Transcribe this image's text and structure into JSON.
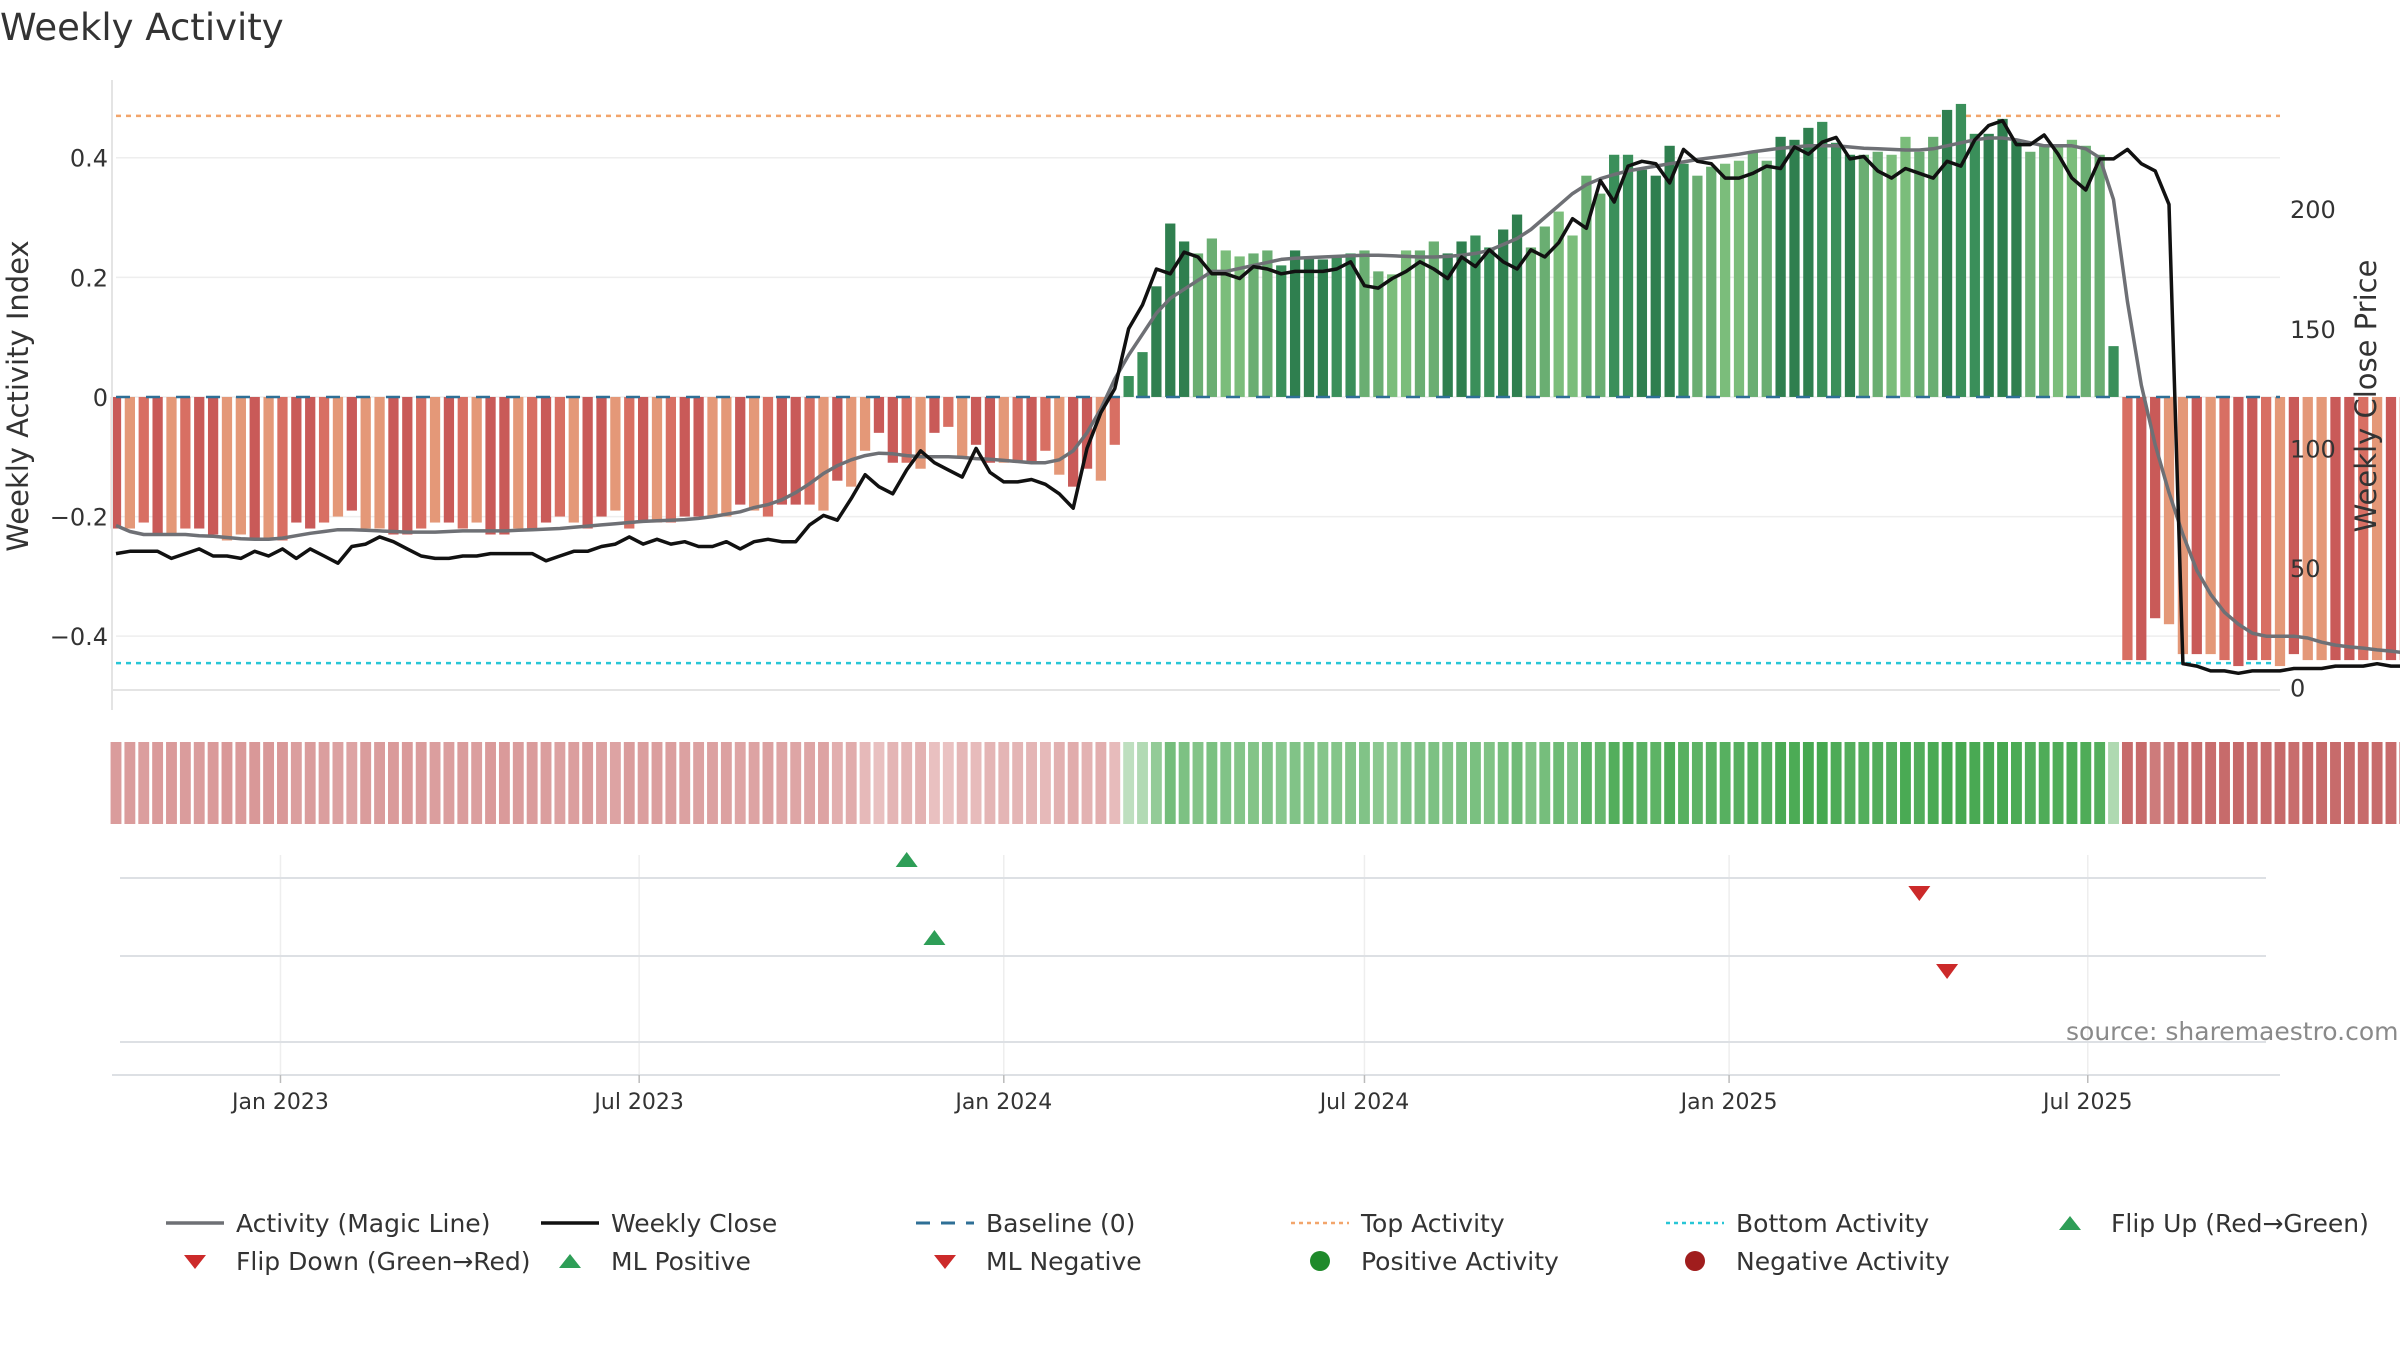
{
  "title": "Weekly Activity",
  "source": "source: sharemaestro.com",
  "colors": {
    "magic_line": "#6e7075",
    "close_line": "#111111",
    "baseline": "#2e6f96",
    "top_activity": "#f2a56b",
    "bottom_activity": "#28c6d6",
    "flip_up": "#2e9e57",
    "flip_down": "#cc2a2a",
    "positive_dot": "#1f8a2b",
    "negative_dot": "#a01d1d"
  },
  "chart_data": {
    "type": "bar",
    "x_ticks": [
      "Jan 2023",
      "Jul 2023",
      "Jan 2024",
      "Jul 2024",
      "Jan 2025",
      "Jul 2025"
    ],
    "x_range": [
      "2022-10-10",
      "2025-10-06"
    ],
    "y_left": {
      "label": "Weekly Activity Index",
      "ticks": [
        "0.4",
        "0.2",
        "0",
        "−0.2",
        "−0.4"
      ],
      "range": [
        -0.49,
        0.53
      ]
    },
    "y_right": {
      "label": "Weekly Close Price",
      "ticks": [
        "200",
        "150",
        "100",
        "50",
        "0"
      ],
      "range": [
        -1,
        254
      ]
    },
    "top_activity": 0.47,
    "bottom_activity": -0.445,
    "baseline": 0,
    "activity_first_week": "2022-10-10",
    "weekly_activity": [
      -0.22,
      -0.22,
      -0.21,
      -0.23,
      -0.23,
      -0.22,
      -0.22,
      -0.23,
      -0.24,
      -0.23,
      -0.24,
      -0.24,
      -0.24,
      -0.21,
      -0.22,
      -0.21,
      -0.2,
      -0.19,
      -0.22,
      -0.22,
      -0.23,
      -0.23,
      -0.22,
      -0.21,
      -0.21,
      -0.22,
      -0.21,
      -0.23,
      -0.23,
      -0.22,
      -0.22,
      -0.21,
      -0.2,
      -0.21,
      -0.22,
      -0.2,
      -0.19,
      -0.22,
      -0.21,
      -0.21,
      -0.21,
      -0.2,
      -0.2,
      -0.2,
      -0.2,
      -0.18,
      -0.19,
      -0.2,
      -0.18,
      -0.18,
      -0.18,
      -0.19,
      -0.14,
      -0.15,
      -0.09,
      -0.06,
      -0.11,
      -0.11,
      -0.12,
      -0.06,
      -0.05,
      -0.1,
      -0.08,
      -0.11,
      -0.11,
      -0.11,
      -0.11,
      -0.09,
      -0.13,
      -0.15,
      -0.12,
      -0.14,
      -0.08,
      0.035,
      0.075,
      0.185,
      0.29,
      0.26,
      0.24,
      0.265,
      0.245,
      0.235,
      0.24,
      0.245,
      0.22,
      0.245,
      0.235,
      0.23,
      0.235,
      0.24,
      0.245,
      0.21,
      0.205,
      0.245,
      0.245,
      0.26,
      0.24,
      0.26,
      0.27,
      0.25,
      0.28,
      0.305,
      0.25,
      0.285,
      0.31,
      0.27,
      0.37,
      0.34,
      0.405,
      0.405,
      0.38,
      0.37,
      0.42,
      0.39,
      0.37,
      0.385,
      0.39,
      0.395,
      0.41,
      0.395,
      0.435,
      0.43,
      0.45,
      0.46,
      0.425,
      0.405,
      0.405,
      0.41,
      0.405,
      0.435,
      0.41,
      0.435,
      0.48,
      0.49,
      0.44,
      0.44,
      0.465,
      0.43,
      0.41,
      0.42,
      0.42,
      0.43,
      0.42,
      0.405,
      0.085,
      -0.44,
      -0.44,
      -0.37,
      -0.38,
      -0.43,
      -0.43,
      -0.43,
      -0.44,
      -0.45,
      -0.44,
      -0.44,
      -0.45,
      -0.43,
      -0.44,
      -0.44,
      -0.44,
      -0.44,
      -0.44,
      -0.44,
      -0.44,
      -0.44,
      -0.44,
      -0.44,
      -0.44,
      -0.44,
      -0.44,
      -0.44,
      -0.44,
      -0.44
    ],
    "series": [
      {
        "name": "Activity (Magic Line)",
        "axis": "left",
        "values": [
          -0.215,
          -0.225,
          -0.23,
          -0.23,
          -0.23,
          -0.23,
          -0.232,
          -0.233,
          -0.235,
          -0.237,
          -0.238,
          -0.238,
          -0.236,
          -0.232,
          -0.228,
          -0.225,
          -0.222,
          -0.222,
          -0.223,
          -0.224,
          -0.225,
          -0.226,
          -0.226,
          -0.226,
          -0.225,
          -0.224,
          -0.224,
          -0.224,
          -0.224,
          -0.223,
          -0.222,
          -0.221,
          -0.22,
          -0.218,
          -0.216,
          -0.214,
          -0.212,
          -0.21,
          -0.208,
          -0.207,
          -0.206,
          -0.205,
          -0.203,
          -0.2,
          -0.196,
          -0.192,
          -0.185,
          -0.18,
          -0.172,
          -0.16,
          -0.145,
          -0.128,
          -0.115,
          -0.105,
          -0.098,
          -0.094,
          -0.095,
          -0.098,
          -0.1,
          -0.1,
          -0.1,
          -0.101,
          -0.103,
          -0.104,
          -0.106,
          -0.108,
          -0.11,
          -0.11,
          -0.105,
          -0.09,
          -0.06,
          -0.02,
          0.03,
          0.07,
          0.105,
          0.14,
          0.165,
          0.18,
          0.195,
          0.21,
          0.21,
          0.215,
          0.22,
          0.225,
          0.23,
          0.232,
          0.233,
          0.234,
          0.235,
          0.236,
          0.237,
          0.237,
          0.236,
          0.235,
          0.234,
          0.234,
          0.235,
          0.237,
          0.24,
          0.245,
          0.255,
          0.265,
          0.28,
          0.3,
          0.32,
          0.34,
          0.355,
          0.365,
          0.372,
          0.378,
          0.382,
          0.386,
          0.39,
          0.393,
          0.397,
          0.4,
          0.403,
          0.406,
          0.41,
          0.413,
          0.416,
          0.418,
          0.42,
          0.42,
          0.42,
          0.418,
          0.416,
          0.415,
          0.414,
          0.413,
          0.413,
          0.415,
          0.42,
          0.425,
          0.43,
          0.433,
          0.433,
          0.43,
          0.425,
          0.42,
          0.42,
          0.42,
          0.415,
          0.4,
          0.33,
          0.16,
          0.02,
          -0.08,
          -0.16,
          -0.23,
          -0.29,
          -0.33,
          -0.36,
          -0.38,
          -0.395,
          -0.4,
          -0.4,
          -0.4,
          -0.403,
          -0.41,
          -0.415,
          -0.418,
          -0.42,
          -0.423,
          -0.425,
          -0.428,
          -0.43,
          -0.432,
          -0.435,
          -0.437,
          -0.438,
          -0.44,
          -0.44,
          -0.44,
          -0.44
        ]
      },
      {
        "name": "Weekly Close",
        "axis": "right",
        "values": [
          56,
          57,
          57,
          57,
          54,
          56,
          58,
          55,
          55,
          54,
          57,
          55,
          58,
          54,
          58,
          55,
          52,
          59,
          60,
          63,
          61,
          58,
          55,
          54,
          54,
          55,
          55,
          56,
          56,
          56,
          56,
          53,
          55,
          57,
          57,
          59,
          60,
          63,
          60,
          62,
          60,
          61,
          59,
          59,
          61,
          58,
          61,
          62,
          61,
          61,
          68,
          72,
          70,
          79,
          89,
          84,
          81,
          91,
          99,
          94,
          91,
          88,
          100,
          90,
          86,
          86,
          87,
          85,
          81,
          75,
          100,
          115,
          125,
          150,
          160,
          175,
          173,
          182,
          180,
          173,
          173,
          171,
          176,
          175,
          173,
          174,
          174,
          174,
          175,
          178,
          168,
          167,
          171,
          174,
          178,
          175,
          171,
          180,
          176,
          183,
          178,
          175,
          183,
          180,
          186,
          196,
          192,
          212,
          203,
          218,
          220,
          219,
          211,
          225,
          220,
          219,
          213,
          213,
          215,
          218,
          217,
          226,
          223,
          228,
          230,
          221,
          222,
          216,
          213,
          217,
          215,
          213,
          220,
          218,
          229,
          235,
          237,
          227,
          227,
          231,
          223,
          213,
          208,
          221,
          221,
          225,
          219,
          216,
          202,
          10,
          9,
          7,
          7,
          6,
          7,
          7,
          7,
          8,
          8,
          8,
          9,
          9,
          9,
          10,
          9,
          9,
          9,
          8,
          8,
          9,
          9,
          9,
          8,
          8,
          8,
          8,
          8,
          8,
          8
        ]
      }
    ],
    "reference_lines": [
      {
        "name": "Baseline (0)",
        "value": 0
      },
      {
        "name": "Top Activity",
        "value": 0.47
      },
      {
        "name": "Bottom Activity",
        "value": -0.445
      }
    ],
    "markers": [
      {
        "name": "Flip Up (Red→Green)",
        "row": 1,
        "date": "2023-11-13"
      },
      {
        "name": "Flip Down (Green→Red)",
        "row": 1,
        "date": "2025-04-07"
      },
      {
        "name": "ML Positive",
        "row": 2,
        "date": "2023-11-27"
      },
      {
        "name": "ML Negative",
        "row": 2,
        "date": "2025-04-21"
      }
    ],
    "legend": [
      {
        "label": "Activity (Magic Line)",
        "icon": "line-gray"
      },
      {
        "label": "Weekly Close",
        "icon": "line-black"
      },
      {
        "label": "Baseline (0)",
        "icon": "dash-blue"
      },
      {
        "label": "Top Activity",
        "icon": "dot-orange"
      },
      {
        "label": "Bottom Activity",
        "icon": "dot-cyan"
      },
      {
        "label": "Flip Up (Red→Green)",
        "icon": "triangle-up-green"
      },
      {
        "label": "Flip Down (Green→Red)",
        "icon": "triangle-down-red"
      },
      {
        "label": "ML Positive",
        "icon": "triangle-up-green"
      },
      {
        "label": "ML Negative",
        "icon": "triangle-down-red"
      },
      {
        "label": "Positive Activity",
        "icon": "circle-green"
      },
      {
        "label": "Negative Activity",
        "icon": "circle-red"
      }
    ]
  }
}
